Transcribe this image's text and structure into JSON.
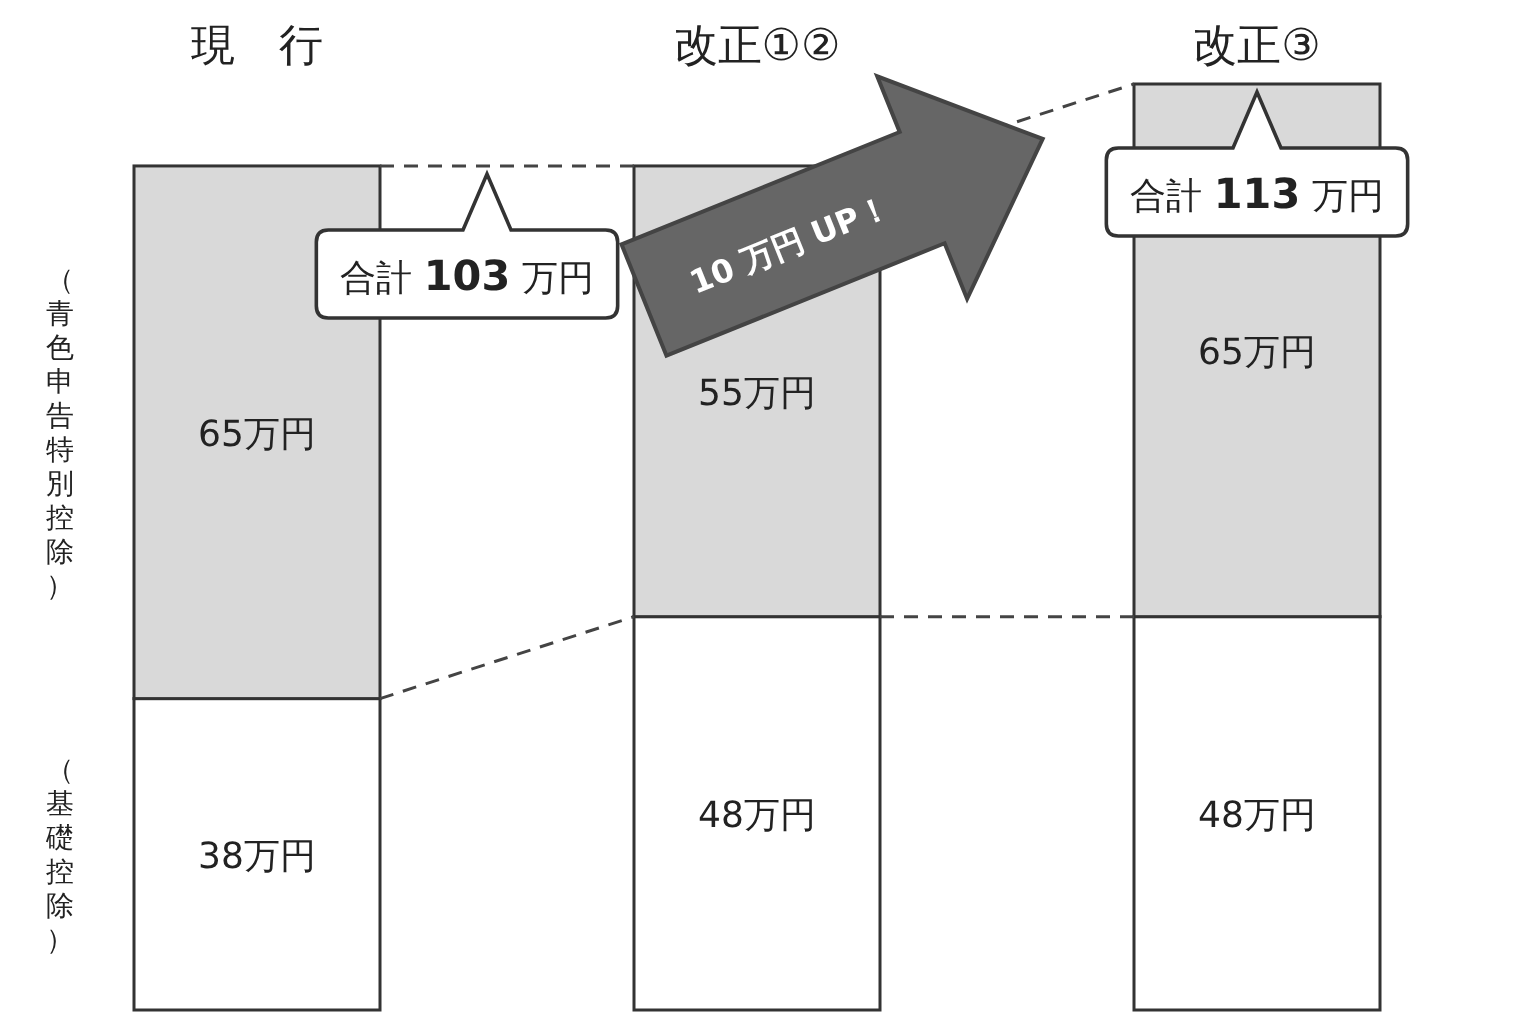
{
  "chart_data": {
    "type": "bar",
    "stacked": true,
    "categories": [
      "現　行",
      "改正①②",
      "改正③"
    ],
    "series": [
      {
        "name": "（基礎控除）",
        "color": "#ffffff",
        "values": [
          38,
          48,
          48
        ],
        "value_labels": [
          "38万円",
          "48万円",
          "48万円"
        ]
      },
      {
        "name": "（青色申告特別控除）",
        "color": "#d9d9d9",
        "values": [
          65,
          55,
          65
        ],
        "value_labels": [
          "65万円",
          "55万円",
          "65万円"
        ]
      }
    ],
    "annotations": [
      {
        "text": "合計 **103** 万円",
        "x": "現　行",
        "y": 103
      },
      {
        "text": "合計 **113** 万円",
        "x": "改正③",
        "y": 113
      },
      "10 万円 UP！"
    ]
  }
}
